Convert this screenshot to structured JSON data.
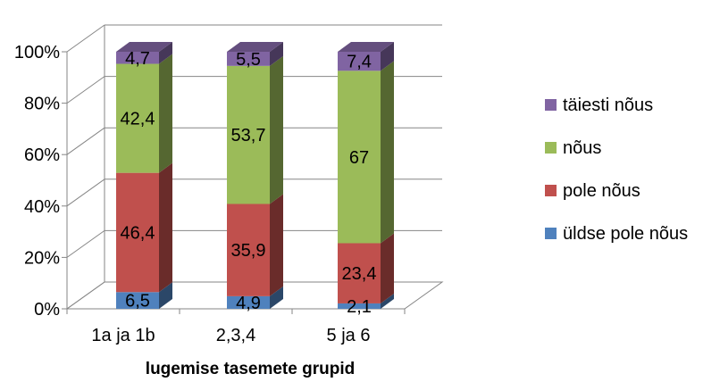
{
  "chart_data": {
    "type": "bar",
    "stacked": true,
    "percent_stacked": true,
    "three_d": true,
    "categories": [
      "1a ja 1b",
      "2,3,4",
      "5 ja 6"
    ],
    "series": [
      {
        "name": "üldse pole nõus",
        "values": [
          6.5,
          4.9,
          2.1
        ],
        "labels": [
          "6,5",
          "4,9",
          "2,1"
        ],
        "color": "#4F81BD"
      },
      {
        "name": "pole nõus",
        "values": [
          46.4,
          35.9,
          23.4
        ],
        "labels": [
          "46,4",
          "35,9",
          "23,4"
        ],
        "color": "#C0504D"
      },
      {
        "name": "nõus",
        "values": [
          42.4,
          53.7,
          67
        ],
        "labels": [
          "42,4",
          "53,7",
          "67"
        ],
        "color": "#9BBB59"
      },
      {
        "name": "täiesti nõus",
        "values": [
          4.7,
          5.5,
          7.4
        ],
        "labels": [
          "4,7",
          "5,5",
          "7,4"
        ],
        "color": "#8064A2"
      }
    ],
    "y_ticks": [
      "0%",
      "20%",
      "40%",
      "60%",
      "80%",
      "100%"
    ],
    "ylim": [
      0,
      100
    ],
    "xlabel": "lugemise tasemete grupid",
    "ylabel": "",
    "grid": true,
    "legend_position": "right"
  }
}
